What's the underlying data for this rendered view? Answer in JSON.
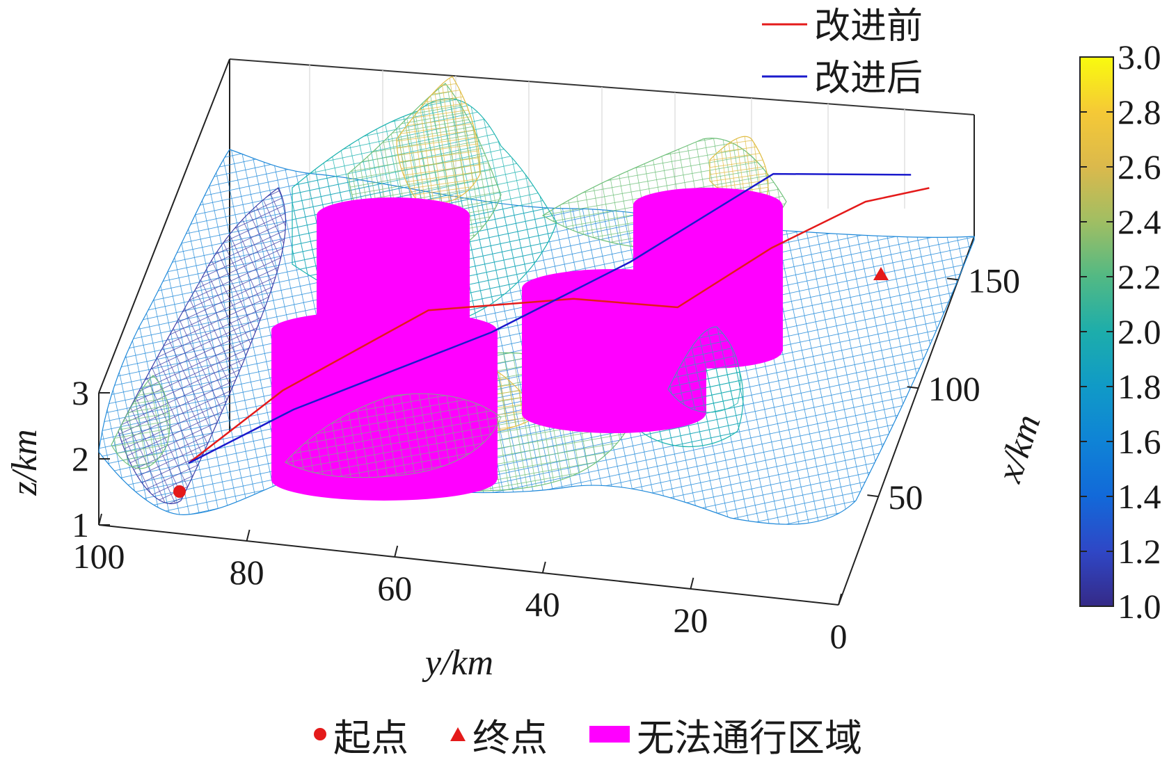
{
  "chart_data": {
    "type": "surface",
    "title": "",
    "xlabel": "x/km",
    "ylabel": "y/km",
    "zlabel": "z/km",
    "x_ticks": [
      "50",
      "100",
      "150"
    ],
    "y_ticks": [
      "100",
      "80",
      "60",
      "40",
      "20",
      "0"
    ],
    "z_ticks": [
      "1",
      "2",
      "3"
    ],
    "xlim": [
      0,
      170
    ],
    "ylim": [
      0,
      100
    ],
    "zlim": [
      1,
      3
    ],
    "colorbar": {
      "ticks": [
        "1.0",
        "1.2",
        "1.4",
        "1.6",
        "1.8",
        "2.0",
        "2.2",
        "2.4",
        "2.6",
        "2.8",
        "3.0"
      ],
      "range": [
        1.0,
        3.0
      ],
      "colormap": "parula"
    },
    "series": [
      {
        "name": "改进前",
        "color": "#e41a1a",
        "points": [
          [
            20,
            90,
            1.4
          ],
          [
            45,
            80,
            1.8
          ],
          [
            70,
            63,
            2.4
          ],
          [
            85,
            45,
            2.3
          ],
          [
            95,
            32,
            2.0
          ],
          [
            120,
            22,
            2.2
          ],
          [
            145,
            12,
            2.2
          ],
          [
            160,
            5,
            2.0
          ]
        ]
      },
      {
        "name": "改进后",
        "color": "#1a1acc",
        "points": [
          [
            20,
            90,
            1.4
          ],
          [
            40,
            78,
            1.7
          ],
          [
            75,
            55,
            2.0
          ],
          [
            110,
            40,
            2.1
          ],
          [
            150,
            25,
            2.3
          ],
          [
            165,
            8,
            2.0
          ]
        ]
      }
    ],
    "obstacles": [
      {
        "center": [
          60,
          65
        ],
        "radius": 22
      },
      {
        "center": [
          130,
          62
        ],
        "radius": 18
      },
      {
        "center": [
          110,
          38
        ],
        "radius": 20
      },
      {
        "center": [
          150,
          28
        ],
        "radius": 18
      }
    ],
    "legend": {
      "position": "top-right",
      "entries": [
        "改进前",
        "改进后"
      ]
    },
    "bottom_legend": {
      "start_label": "起点",
      "end_label": "终点",
      "obstacle_label": "无法通行区域"
    }
  },
  "colors": {
    "path_before": "#e41a1a",
    "path_after": "#1a1acc",
    "obstacle": "#ff00ff",
    "marker": "#e41a1a"
  }
}
